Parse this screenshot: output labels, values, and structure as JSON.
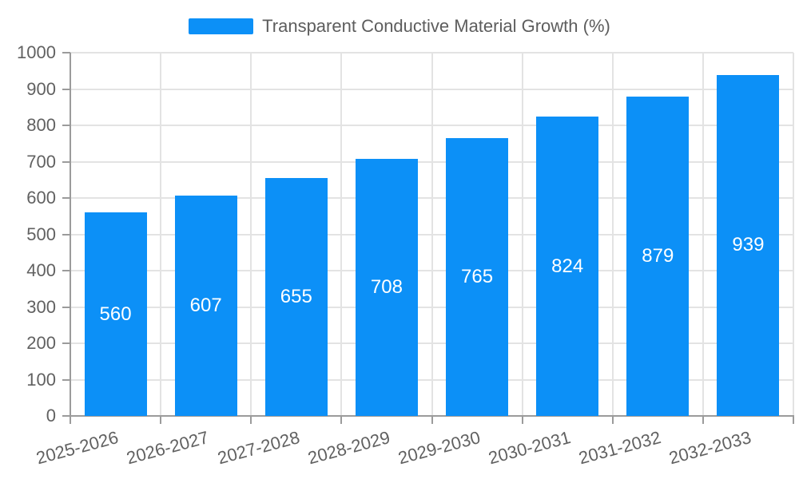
{
  "legend": {
    "label": "Transparent Conductive Material Growth (%)",
    "swatch_color": "#0C90F7"
  },
  "chart_data": {
    "type": "bar",
    "title": "Transparent Conductive Material Growth (%)",
    "categories": [
      "2025-2026",
      "2026-2027",
      "2027-2028",
      "2028-2029",
      "2029-2030",
      "2030-2031",
      "2031-2032",
      "2032-2033"
    ],
    "values": [
      560,
      607,
      655,
      708,
      765,
      824,
      879,
      939
    ],
    "series_name": "Transparent Conductive Material Growth (%)",
    "xlabel": "",
    "ylabel": "",
    "ylim": [
      0,
      1000
    ],
    "ytick_step": 100,
    "yticks": [
      0,
      100,
      200,
      300,
      400,
      500,
      600,
      700,
      800,
      900,
      1000
    ],
    "grid": true,
    "legend_position": "top-center",
    "value_label_position": "inside-center",
    "x_label_rotation_deg": -15,
    "bar_color": "#0C90F7",
    "value_label_color": "#ffffff",
    "axis_color": "#9b9b9b",
    "grid_color": "#e3e3e3",
    "text_color": "#616161",
    "background_color": "#ffffff"
  }
}
